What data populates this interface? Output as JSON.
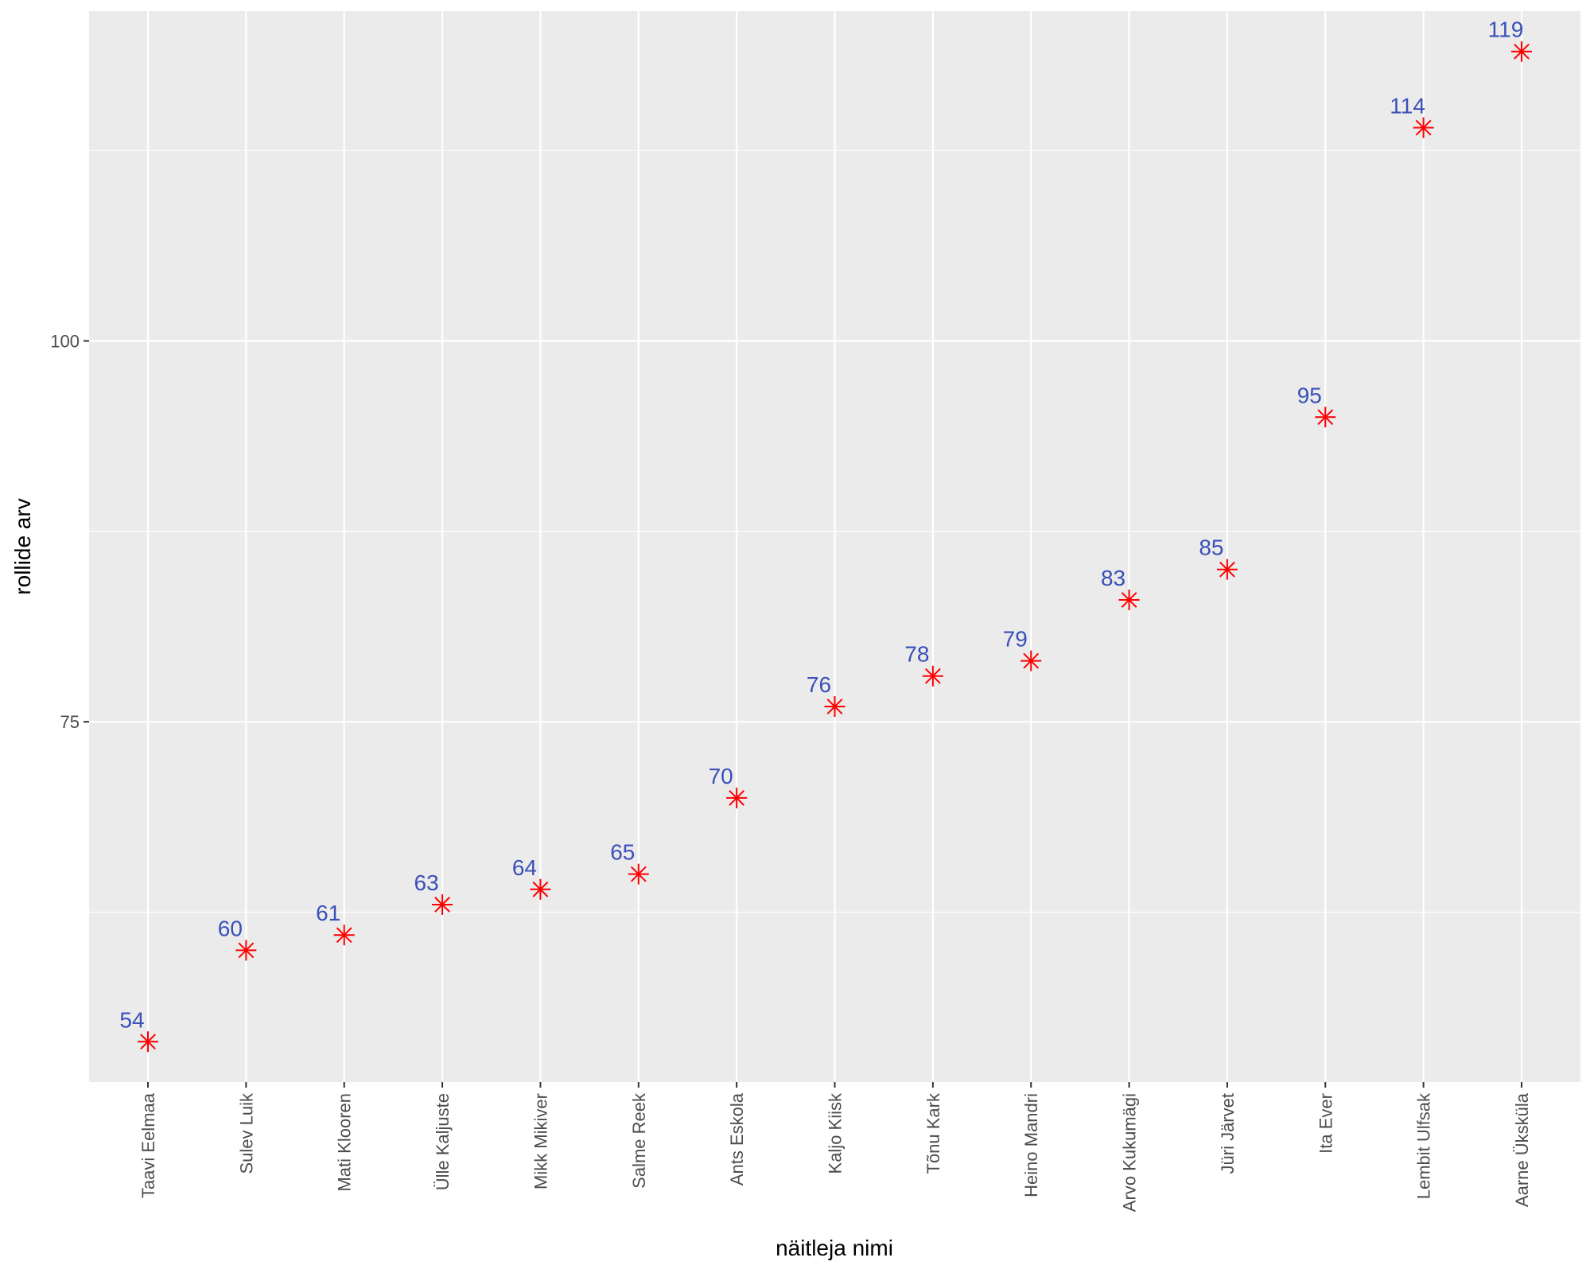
{
  "chart_data": {
    "type": "scatter",
    "title": "",
    "xlabel": "näitleja nimi",
    "ylabel": "rollide arv",
    "categories": [
      "Taavi Eelmaa",
      "Sulev Luik",
      "Mati Klooren",
      "Ülle Kaljuste",
      "Mikk Mikiver",
      "Salme Reek",
      "Ants Eskola",
      "Kaljo Kiisk",
      "Tõnu Kark",
      "Heino Mandri",
      "Arvo Kukumägi",
      "Jüri Järvet",
      "Ita Ever",
      "Lembit Ulfsak",
      "Aarne Üksküla"
    ],
    "values": [
      54,
      60,
      61,
      63,
      64,
      65,
      70,
      76,
      78,
      79,
      83,
      85,
      95,
      114,
      119
    ],
    "data_labels": [
      "54",
      "60",
      "61",
      "63",
      "64",
      "65",
      "70",
      "76",
      "78",
      "79",
      "83",
      "85",
      "95",
      "114",
      "119"
    ],
    "yticks": [
      75,
      100
    ],
    "ytick_labels": [
      "75",
      "100"
    ],
    "ylim": [
      51.35,
      121.65
    ],
    "grid": true,
    "legend": "none",
    "colors": {
      "panel_background": "#ebebeb",
      "grid": "#ffffff",
      "marker": "#ff0000",
      "data_label": "#3a50b8"
    },
    "marker": "asterisk"
  }
}
